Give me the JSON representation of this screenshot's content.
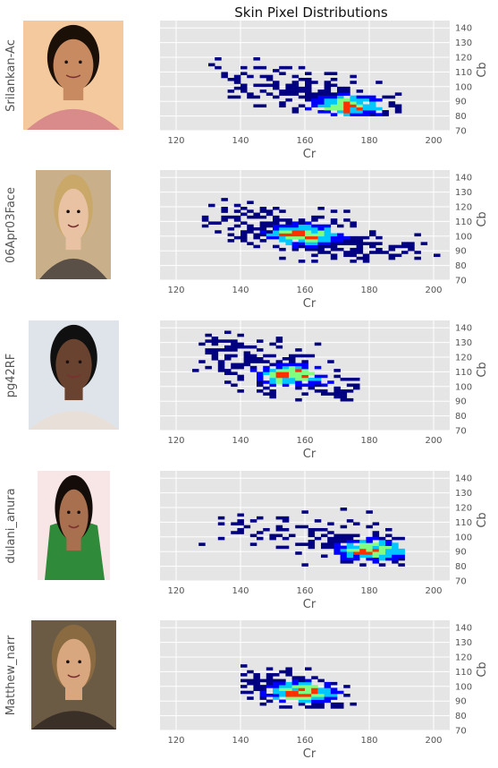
{
  "figure": {
    "title": "Skin Pixel Distributions",
    "colors": {
      "panel_bg": "#e5e5e5",
      "grid": "#ffffff",
      "tick_text": "#555555",
      "label_text": "#555555",
      "heat_low": "#000080",
      "heat_mid1": "#0000ff",
      "heat_mid2": "#00c8ff",
      "heat_mid3": "#80ff80",
      "heat_high": "#ff3000"
    }
  },
  "chart_data": [
    {
      "type": "heatmap",
      "subject": "Srilankan-Ac",
      "photo_icon": "woman-portrait-icon",
      "xlabel": "Cr",
      "ylabel": "Cb",
      "xlim": [
        115,
        205
      ],
      "ylim": [
        70,
        145
      ],
      "xticks": [
        120,
        140,
        160,
        180,
        200
      ],
      "yticks": [
        70,
        80,
        90,
        100,
        110,
        120,
        130,
        140
      ],
      "grid": true,
      "distribution": {
        "cr_range": [
          130,
          190
        ],
        "cb_range": [
          80,
          118
        ],
        "peak": [
          172,
          86
        ],
        "slope": -0.55
      }
    },
    {
      "type": "heatmap",
      "subject": "06Apr03Face",
      "photo_icon": "woman-portrait-icon",
      "xlabel": "Cr",
      "ylabel": "Cb",
      "xlim": [
        115,
        205
      ],
      "ylim": [
        70,
        145
      ],
      "xticks": [
        120,
        140,
        160,
        180,
        200
      ],
      "yticks": [
        70,
        80,
        90,
        100,
        110,
        120,
        130,
        140
      ],
      "grid": true,
      "distribution": {
        "cr_range": [
          128,
          200
        ],
        "cb_range": [
          82,
          124
        ],
        "peak": [
          158,
          100
        ],
        "slope": -0.5
      }
    },
    {
      "type": "heatmap",
      "subject": "pg42RF",
      "photo_icon": "man-portrait-icon",
      "xlabel": "Cr",
      "ylabel": "Cb",
      "xlim": [
        115,
        205
      ],
      "ylim": [
        70,
        145
      ],
      "xticks": [
        120,
        140,
        160,
        180,
        200
      ],
      "yticks": [
        70,
        80,
        90,
        100,
        110,
        120,
        130,
        140
      ],
      "grid": true,
      "distribution": {
        "cr_range": [
          125,
          175
        ],
        "cb_range": [
          90,
          136
        ],
        "peak": [
          155,
          107
        ],
        "slope": -0.7
      }
    },
    {
      "type": "heatmap",
      "subject": "dulani_anura",
      "photo_icon": "woman-green-dress-icon",
      "xlabel": "Cr",
      "ylabel": "Cb",
      "xlim": [
        115,
        205
      ],
      "ylim": [
        70,
        145
      ],
      "xticks": [
        120,
        140,
        160,
        180,
        200
      ],
      "yticks": [
        70,
        80,
        90,
        100,
        110,
        120,
        130,
        140
      ],
      "grid": true,
      "distribution": {
        "cr_range": [
          125,
          190
        ],
        "cb_range": [
          80,
          118
        ],
        "peak": [
          180,
          90
        ],
        "slope": -0.45
      }
    },
    {
      "type": "heatmap",
      "subject": "Matthew_narr",
      "photo_icon": "man-portrait-icon",
      "xlabel": "Cr",
      "ylabel": "Cb",
      "xlim": [
        115,
        205
      ],
      "ylim": [
        70,
        145
      ],
      "xticks": [
        120,
        140,
        160,
        180,
        200
      ],
      "yticks": [
        70,
        80,
        90,
        100,
        110,
        120,
        130,
        140
      ],
      "grid": true,
      "distribution": {
        "cr_range": [
          140,
          175
        ],
        "cb_range": [
          85,
          118
        ],
        "peak": [
          158,
          95
        ],
        "slope": -0.6
      }
    }
  ]
}
